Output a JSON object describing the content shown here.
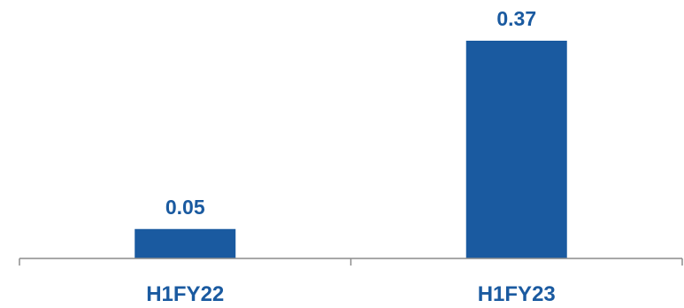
{
  "chart_data": {
    "type": "bar",
    "categories": [
      "H1FY22",
      "H1FY23"
    ],
    "values": [
      0.05,
      0.37
    ],
    "data_labels": [
      "0.05",
      "0.37"
    ],
    "title": "",
    "xlabel": "",
    "ylabel": "",
    "ylim": [
      0,
      0.4
    ],
    "grid": false,
    "legend": "none",
    "colors": {
      "bar": "#1a5aa0",
      "label": "#1a5aa0",
      "axis": "#8c8c8c"
    }
  }
}
